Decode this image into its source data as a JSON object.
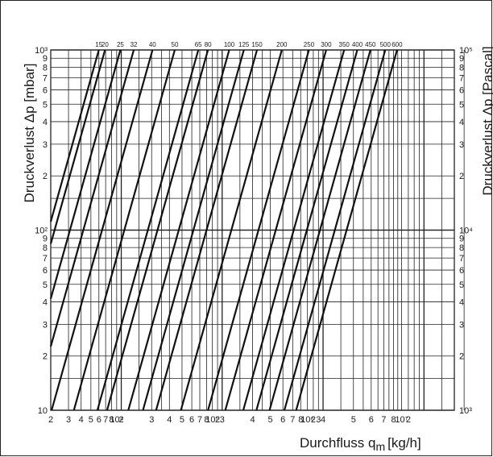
{
  "chart_data": {
    "type": "line",
    "title": "",
    "xlabel": "Durchfluss q",
    "xlabel_sub": "m",
    "xlabel_unit": "[kg/h]",
    "ylabel_left": "Druckverlust Δp [mbar]",
    "ylabel_right": "Druckverlust Δp [Pascal]",
    "x_scale": "log",
    "y_scale": "log",
    "xlim": [
      2000,
      20000000
    ],
    "ylim_left_mbar": [
      10,
      1000
    ],
    "ylim_right_pa": [
      1000,
      100000
    ],
    "grid": true,
    "x_tick_labels": [
      "2",
      "3",
      "4",
      "5",
      "6",
      "7",
      "8",
      "10⁴",
      "2",
      "3",
      "4",
      "5",
      "6",
      "7",
      "8",
      "10⁵",
      "2",
      "3",
      "4",
      "5",
      "6",
      "7",
      "8",
      "10⁶",
      "2",
      "3",
      "4",
      "5",
      "6",
      "7",
      "8",
      "10⁷",
      "2"
    ],
    "y_tick_labels_left": [
      "10",
      "2",
      "3",
      "4",
      "5",
      "6",
      "7",
      "8",
      "9",
      "10²",
      "2",
      "3",
      "4",
      "5",
      "6",
      "7",
      "8",
      "9",
      "10³"
    ],
    "y_tick_labels_right": [
      "10³",
      "2",
      "3",
      "4",
      "5",
      "6",
      "7",
      "8",
      "9",
      "10⁴",
      "2",
      "3",
      "4",
      "5",
      "6",
      "7",
      "8",
      "9",
      "10⁵"
    ],
    "series": [
      {
        "name": "15",
        "slope": 2,
        "y_at_1000mbar_flow": 5990
      },
      {
        "name": "20",
        "slope": 2,
        "y_at_1000mbar_flow": 6900
      },
      {
        "name": "25",
        "slope": 2,
        "y_at_1000mbar_flow": 9800
      },
      {
        "name": "32",
        "slope": 2,
        "y_at_1000mbar_flow": 13300
      },
      {
        "name": "40",
        "slope": 2,
        "y_at_1000mbar_flow": 20400
      },
      {
        "name": "50",
        "slope": 2,
        "y_at_1000mbar_flow": 33900
      },
      {
        "name": "65",
        "slope": 2,
        "y_at_1000mbar_flow": 58000
      },
      {
        "name": "80",
        "slope": 2,
        "y_at_1000mbar_flow": 72300
      },
      {
        "name": "100",
        "slope": 2,
        "y_at_1000mbar_flow": 117400
      },
      {
        "name": "125",
        "slope": 2,
        "y_at_1000mbar_flow": 164000
      },
      {
        "name": "150",
        "slope": 2,
        "y_at_1000mbar_flow": 221300
      },
      {
        "name": "200",
        "slope": 2,
        "y_at_1000mbar_flow": 390000
      },
      {
        "name": "250",
        "slope": 2,
        "y_at_1000mbar_flow": 724000
      },
      {
        "name": "300",
        "slope": 2,
        "y_at_1000mbar_flow": 1074000
      },
      {
        "name": "350",
        "slope": 2,
        "y_at_1000mbar_flow": 1618000
      },
      {
        "name": "400",
        "slope": 2,
        "y_at_1000mbar_flow": 2184000
      },
      {
        "name": "450",
        "slope": 2,
        "y_at_1000mbar_flow": 2947000
      },
      {
        "name": "500",
        "slope": 2,
        "y_at_1000mbar_flow": 4135000
      },
      {
        "name": "600",
        "slope": 2,
        "y_at_1000mbar_flow": 5410000
      }
    ]
  }
}
